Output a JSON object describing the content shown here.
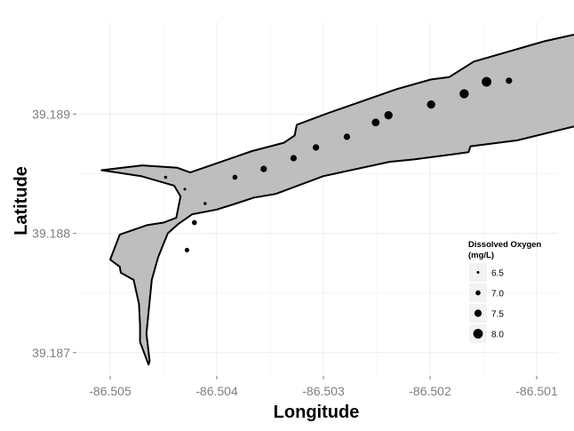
{
  "chart_data": {
    "type": "scatter",
    "xlabel": "Longitude",
    "ylabel": "Latitude",
    "xlim": [
      -86.5053,
      -86.5008
    ],
    "ylim": [
      39.18682,
      39.18977
    ],
    "x_ticks": [
      -86.505,
      -86.504,
      -86.503,
      -86.502,
      -86.501
    ],
    "x_tick_labels": [
      "-86.505",
      "-86.504",
      "-86.503",
      "-86.502",
      "-86.501"
    ],
    "y_ticks": [
      39.187,
      39.188,
      39.189
    ],
    "y_tick_labels": [
      "39.187",
      "39.188",
      "39.189"
    ],
    "grid": true,
    "legend": {
      "title_lines": [
        "Dissolved Oxygen",
        "(mg/L)"
      ],
      "position": "right",
      "entries": [
        {
          "label": "6.5",
          "value": 6.5
        },
        {
          "label": "7.0",
          "value": 7.0
        },
        {
          "label": "7.5",
          "value": 7.5
        },
        {
          "label": "8.0",
          "value": 8.0
        }
      ]
    },
    "size_domain": [
      6.3,
      8.3
    ],
    "marker_color": "#000000",
    "fill_color": "#bebebe",
    "boundary": [
      [
        -86.50508,
        39.18853
      ],
      [
        -86.5047,
        39.18857
      ],
      [
        -86.50437,
        39.18855
      ],
      [
        -86.50425,
        39.18851
      ],
      [
        -86.50367,
        39.18869
      ],
      [
        -86.50337,
        39.18876
      ],
      [
        -86.50327,
        39.18882
      ],
      [
        -86.50325,
        39.18891
      ],
      [
        -86.50295,
        39.18901
      ],
      [
        -86.50231,
        39.18921
      ],
      [
        -86.50199,
        39.18929
      ],
      [
        -86.50182,
        39.18931
      ],
      [
        -86.50159,
        39.18944
      ],
      [
        -86.50093,
        39.18961
      ],
      [
        -86.50038,
        39.18972
      ],
      [
        -86.50034,
        39.18971
      ],
      [
        -86.50034,
        39.18954
      ],
      [
        -86.50024,
        39.18933
      ],
      [
        -86.50008,
        39.18904
      ],
      [
        -86.50045,
        39.18894
      ],
      [
        -86.50118,
        39.18878
      ],
      [
        -86.50162,
        39.18873
      ],
      [
        -86.50164,
        39.18868
      ],
      [
        -86.50215,
        39.18862
      ],
      [
        -86.50238,
        39.1886
      ],
      [
        -86.503,
        39.18848
      ],
      [
        -86.50345,
        39.18833
      ],
      [
        -86.50365,
        39.1883
      ],
      [
        -86.50382,
        39.18825
      ],
      [
        -86.504,
        39.1882
      ],
      [
        -86.50423,
        39.18816
      ],
      [
        -86.50436,
        39.18808
      ],
      [
        -86.50446,
        39.188
      ],
      [
        -86.50455,
        39.1878
      ],
      [
        -86.50461,
        39.18761
      ],
      [
        -86.50466,
        39.18716
      ],
      [
        -86.50463,
        39.18693
      ],
      [
        -86.50464,
        39.1869
      ],
      [
        -86.50472,
        39.18709
      ],
      [
        -86.50472,
        39.18723
      ],
      [
        -86.50473,
        39.18741
      ],
      [
        -86.50478,
        39.18761
      ],
      [
        -86.5049,
        39.18767
      ],
      [
        -86.50491,
        39.18772
      ],
      [
        -86.505,
        39.18778
      ],
      [
        -86.50491,
        39.18799
      ],
      [
        -86.50465,
        39.18807
      ],
      [
        -86.5045,
        39.18809
      ],
      [
        -86.50438,
        39.18813
      ],
      [
        -86.50434,
        39.18831
      ],
      [
        -86.5044,
        39.1884
      ],
      [
        -86.50471,
        39.18848
      ]
    ],
    "points": [
      {
        "x": -86.50126,
        "y": 39.18928,
        "do": 7.3
      },
      {
        "x": -86.50147,
        "y": 39.18927,
        "do": 8.0
      },
      {
        "x": -86.50168,
        "y": 39.18917,
        "do": 7.9
      },
      {
        "x": -86.50199,
        "y": 39.18908,
        "do": 7.7
      },
      {
        "x": -86.50239,
        "y": 39.18899,
        "do": 7.7
      },
      {
        "x": -86.50251,
        "y": 39.18893,
        "do": 7.6
      },
      {
        "x": -86.50278,
        "y": 39.18881,
        "do": 7.3
      },
      {
        "x": -86.50307,
        "y": 39.18872,
        "do": 7.3
      },
      {
        "x": -86.50328,
        "y": 39.18863,
        "do": 7.3
      },
      {
        "x": -86.50356,
        "y": 39.18854,
        "do": 7.3
      },
      {
        "x": -86.50383,
        "y": 39.18847,
        "do": 7.0
      },
      {
        "x": -86.50448,
        "y": 39.18847,
        "do": 6.6
      },
      {
        "x": -86.5043,
        "y": 39.18837,
        "do": 6.5
      },
      {
        "x": -86.50411,
        "y": 39.18825,
        "do": 6.6
      },
      {
        "x": -86.50421,
        "y": 39.18809,
        "do": 7.0
      },
      {
        "x": -86.50428,
        "y": 39.18786,
        "do": 6.9
      }
    ]
  }
}
